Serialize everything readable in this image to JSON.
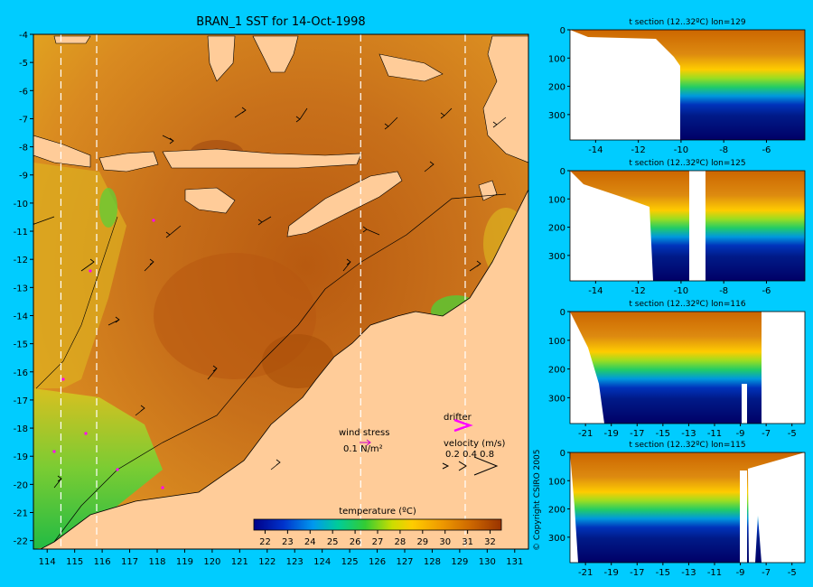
{
  "window": {
    "background": "#00ccff"
  },
  "main_map": {
    "title": "BRAN_1 SST for 14-Oct-1998",
    "x_ticks": [
      "114",
      "115",
      "116",
      "117",
      "118",
      "119",
      "120",
      "121",
      "122",
      "123",
      "124",
      "125",
      "126",
      "127",
      "128",
      "129",
      "130",
      "131"
    ],
    "y_ticks": [
      "-4",
      "-5",
      "-6",
      "-7",
      "-8",
      "-9",
      "-10",
      "-11",
      "-12",
      "-13",
      "-14",
      "-15",
      "-16",
      "-17",
      "-18",
      "-19",
      "-20",
      "-21",
      "-22"
    ],
    "xlim": [
      113.5,
      131.5
    ],
    "ylim": [
      -22.3,
      -4
    ],
    "section_lons": [
      114.5,
      115.8,
      125.4,
      129.2
    ],
    "legend": {
      "wind_label": "wind stress",
      "wind_scale": "0.1 N/m²",
      "drifter_label": "drifter",
      "velocity_label": "velocity (m/s)",
      "velocity_scale": "0.2 0.4 0.8",
      "drifter_color": "#ff00ff"
    },
    "colorbar": {
      "label": "temperature (ºC)",
      "ticks": [
        "22",
        "23",
        "24",
        "25",
        "26",
        "27",
        "28",
        "29",
        "30",
        "31",
        "32"
      ]
    },
    "colors": {
      "land": "#ffcc99",
      "warm": "#cc6600",
      "cool": "#33cc33"
    }
  },
  "sections": [
    {
      "title": "t section (12..32ºC) lon=129",
      "x_ticks": [
        "-14",
        "-12",
        "-10",
        "-8",
        "-6"
      ],
      "xlim": [
        -15.2,
        -4.2
      ],
      "y_ticks": [
        "0",
        "100",
        "200",
        "300"
      ]
    },
    {
      "title": "t section (12..32ºC) lon=125",
      "x_ticks": [
        "-14",
        "-12",
        "-10",
        "-8",
        "-6"
      ],
      "xlim": [
        -15.2,
        -4.2
      ],
      "y_ticks": [
        "0",
        "100",
        "200",
        "300"
      ]
    },
    {
      "title": "t section (12..32ºC) lon=116",
      "x_ticks": [
        "-21",
        "-19",
        "-17",
        "-15",
        "-13",
        "-11",
        "-9",
        "-7",
        "-5"
      ],
      "xlim": [
        -22.2,
        -4.0
      ],
      "y_ticks": [
        "0",
        "100",
        "200",
        "300"
      ]
    },
    {
      "title": "t section (12..32ºC) lon=115",
      "x_ticks": [
        "-21",
        "-19",
        "-17",
        "-15",
        "-13",
        "-11",
        "-9",
        "-7",
        "-5"
      ],
      "xlim": [
        -22.2,
        -4.0
      ],
      "y_ticks": [
        "0",
        "100",
        "200",
        "300"
      ]
    }
  ],
  "copyright": "© Copyright CSIRO 2005",
  "chart_data": [
    {
      "type": "heatmap",
      "title": "BRAN_1 SST for 14-Oct-1998",
      "xlabel": "",
      "ylabel": "",
      "xlim": [
        113.5,
        131.5
      ],
      "ylim": [
        -22.3,
        -4
      ],
      "colorbar_range": [
        22,
        32
      ],
      "colorbar_label": "temperature (ºC)"
    },
    {
      "type": "heatmap",
      "title": "t section (12..32ºC) lon=129",
      "xlim": [
        -15.2,
        -4.2
      ],
      "ylim": [
        390,
        0
      ],
      "value_range": [
        12,
        32
      ]
    },
    {
      "type": "heatmap",
      "title": "t section (12..32ºC) lon=125",
      "xlim": [
        -15.2,
        -4.2
      ],
      "ylim": [
        390,
        0
      ],
      "value_range": [
        12,
        32
      ]
    },
    {
      "type": "heatmap",
      "title": "t section (12..32ºC) lon=116",
      "xlim": [
        -22.2,
        -4.0
      ],
      "ylim": [
        390,
        0
      ],
      "value_range": [
        12,
        32
      ]
    },
    {
      "type": "heatmap",
      "title": "t section (12..32ºC) lon=115",
      "xlim": [
        -22.2,
        -4.0
      ],
      "ylim": [
        390,
        0
      ],
      "value_range": [
        12,
        32
      ]
    }
  ]
}
